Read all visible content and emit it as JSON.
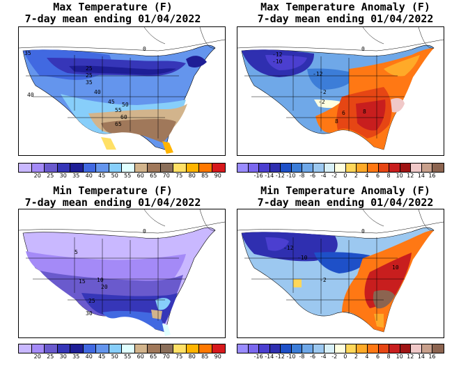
{
  "panels": [
    {
      "id": "max-temp",
      "title": "Max Temperature (F)",
      "subtitle": "7-day mean ending 01/04/2022",
      "contour_labels": [
        "35",
        "25",
        "25",
        "35",
        "40",
        "45",
        "50",
        "55",
        "60",
        "65",
        "40",
        "0"
      ],
      "legend": {
        "ticks": [
          "20",
          "25",
          "30",
          "35",
          "40",
          "45",
          "50",
          "55",
          "60",
          "65",
          "70",
          "75",
          "80",
          "85",
          "90"
        ],
        "colors": [
          "#c9b8ff",
          "#a48af7",
          "#6a5acd",
          "#3636b8",
          "#1e1e96",
          "#4169e1",
          "#6495ed",
          "#87cefa",
          "#e0ffff",
          "#d2b48c",
          "#a0785a",
          "#8b6f5a",
          "#ffe066",
          "#ffb400",
          "#ff7800",
          "#d7191c"
        ]
      }
    },
    {
      "id": "max-anom",
      "title": "Max Temperature Anomaly (F)",
      "subtitle": "7-day mean ending 01/04/2022",
      "contour_labels": [
        "-12",
        "-10",
        "-12",
        "-2",
        "-2",
        "6",
        "8",
        "8",
        "0"
      ],
      "legend": {
        "ticks": [
          "-16",
          "-14",
          "-12",
          "-10",
          "-8",
          "-6",
          "-4",
          "-2",
          "0",
          "2",
          "4",
          "6",
          "8",
          "10",
          "12",
          "14",
          "16"
        ],
        "colors": [
          "#9a8cff",
          "#7b68ee",
          "#4b3fd0",
          "#2f2fb0",
          "#1e50c8",
          "#3c7dd8",
          "#6fa8e8",
          "#9cc8f0",
          "#d8f0f8",
          "#ffffe0",
          "#ffd75a",
          "#ffaa28",
          "#ff7814",
          "#e64614",
          "#c81e1e",
          "#a01414",
          "#f0c8c8",
          "#c8a08c",
          "#8c6450"
        ]
      }
    },
    {
      "id": "min-temp",
      "title": "Min Temperature (F)",
      "subtitle": "7-day mean ending 01/04/2022",
      "contour_labels": [
        "5",
        "15",
        "10",
        "20",
        "25",
        "30",
        "0"
      ],
      "legend": {
        "ticks": [
          "20",
          "25",
          "30",
          "35",
          "40",
          "45",
          "50",
          "55",
          "60",
          "65",
          "70",
          "75",
          "80",
          "85",
          "90"
        ],
        "colors": [
          "#c9b8ff",
          "#a48af7",
          "#6a5acd",
          "#3636b8",
          "#1e1e96",
          "#4169e1",
          "#6495ed",
          "#87cefa",
          "#e0ffff",
          "#d2b48c",
          "#a0785a",
          "#8b6f5a",
          "#ffe066",
          "#ffb400",
          "#ff7800",
          "#d7191c"
        ]
      }
    },
    {
      "id": "min-anom",
      "title": "Min Temperature Anomaly (F)",
      "subtitle": "7-day mean ending 01/04/2022",
      "contour_labels": [
        "-12",
        "-10",
        "-2",
        "10",
        "0"
      ],
      "legend": {
        "ticks": [
          "-16",
          "-14",
          "-12",
          "-10",
          "-8",
          "-6",
          "-4",
          "-2",
          "0",
          "2",
          "4",
          "6",
          "8",
          "10",
          "12",
          "14",
          "16"
        ],
        "colors": [
          "#9a8cff",
          "#7b68ee",
          "#4b3fd0",
          "#2f2fb0",
          "#1e50c8",
          "#3c7dd8",
          "#6fa8e8",
          "#9cc8f0",
          "#d8f0f8",
          "#ffffe0",
          "#ffd75a",
          "#ffaa28",
          "#ff7814",
          "#e64614",
          "#c81e1e",
          "#a01414",
          "#f0c8c8",
          "#c8a08c",
          "#8c6450"
        ]
      }
    }
  ]
}
